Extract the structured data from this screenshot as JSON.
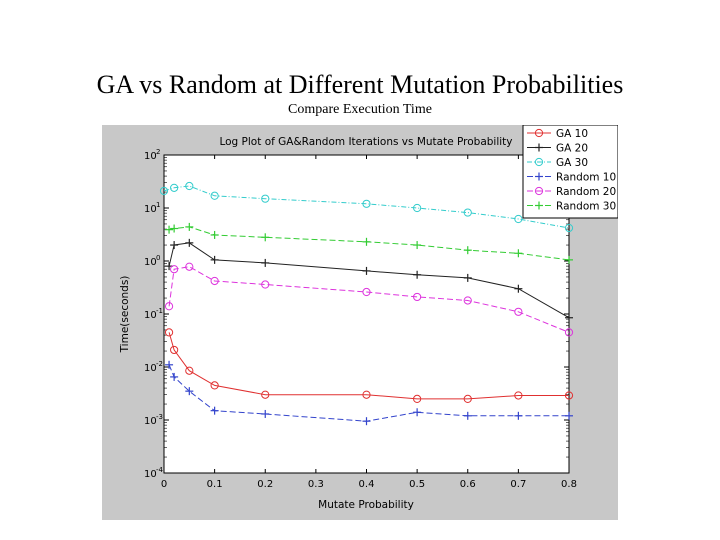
{
  "slide": {
    "title": "GA vs Random at Different Mutation Probabilities",
    "subtitle": "Compare Execution Time"
  },
  "chart_data": {
    "type": "line",
    "title": "Log Plot of GA&Random Iterations vs Mutate Probability",
    "xlabel": "Mutate Probability",
    "ylabel": "Time(seconds)",
    "yscale": "log",
    "xlim": [
      0,
      0.8
    ],
    "ylim": [
      0.0001,
      100
    ],
    "x_ticks": [
      "0",
      "0.1",
      "0.2",
      "0.3",
      "0.4",
      "0.5",
      "0.6",
      "0.7",
      "0.8"
    ],
    "y_ticks": [
      {
        "base": "10",
        "exp": "2",
        "value": 100
      },
      {
        "base": "10",
        "exp": "1",
        "value": 10
      },
      {
        "base": "10",
        "exp": "0",
        "value": 1
      },
      {
        "base": "10",
        "exp": "-1",
        "value": 0.1
      },
      {
        "base": "10",
        "exp": "-2",
        "value": 0.01
      },
      {
        "base": "10",
        "exp": "-3",
        "value": 0.001
      },
      {
        "base": "10",
        "exp": "-4",
        "value": 0.0001
      }
    ],
    "legend_position": "top-right",
    "series": [
      {
        "name": "GA 10",
        "color": "#e03030",
        "marker": "circle",
        "dash": "solid",
        "x": [
          0.01,
          0.02,
          0.05,
          0.1,
          0.2,
          0.4,
          0.5,
          0.6,
          0.7,
          0.8
        ],
        "values": [
          0.045,
          0.021,
          0.0085,
          0.0045,
          0.003,
          0.003,
          0.0025,
          0.0025,
          0.0029,
          0.0029
        ]
      },
      {
        "name": "GA 20",
        "color": "#222222",
        "marker": "plus",
        "dash": "solid",
        "x": [
          0.01,
          0.02,
          0.05,
          0.1,
          0.2,
          0.4,
          0.5,
          0.6,
          0.7,
          0.8
        ],
        "values": [
          0.8,
          2.0,
          2.2,
          1.05,
          0.92,
          0.65,
          0.55,
          0.48,
          0.3,
          0.085
        ]
      },
      {
        "name": "GA 30",
        "color": "#33cccc",
        "marker": "circle",
        "dash": "dashdot",
        "x": [
          0.0,
          0.02,
          0.05,
          0.1,
          0.2,
          0.4,
          0.5,
          0.6,
          0.7,
          0.8
        ],
        "values": [
          21,
          24,
          26,
          17,
          15,
          12,
          10,
          8.2,
          6.2,
          4.2
        ]
      },
      {
        "name": "Random 10",
        "color": "#3344cc",
        "marker": "plus",
        "dash": "dashed",
        "x": [
          0.01,
          0.02,
          0.05,
          0.1,
          0.2,
          0.4,
          0.5,
          0.6,
          0.7,
          0.8
        ],
        "values": [
          0.011,
          0.0065,
          0.0035,
          0.0015,
          0.0013,
          0.00095,
          0.0014,
          0.0012,
          0.0012,
          0.0012
        ]
      },
      {
        "name": "Random 20",
        "color": "#dd33dd",
        "marker": "circle",
        "dash": "dashed",
        "x": [
          0.01,
          0.02,
          0.05,
          0.1,
          0.2,
          0.4,
          0.5,
          0.6,
          0.7,
          0.8
        ],
        "values": [
          0.14,
          0.7,
          0.78,
          0.42,
          0.36,
          0.26,
          0.21,
          0.18,
          0.11,
          0.045
        ]
      },
      {
        "name": "Random 30",
        "color": "#33cc33",
        "marker": "plus",
        "dash": "dashed",
        "x": [
          0.01,
          0.02,
          0.05,
          0.1,
          0.2,
          0.4,
          0.5,
          0.6,
          0.7,
          0.8
        ],
        "values": [
          3.9,
          4.1,
          4.4,
          3.1,
          2.8,
          2.3,
          2.0,
          1.6,
          1.4,
          1.05
        ]
      }
    ]
  }
}
